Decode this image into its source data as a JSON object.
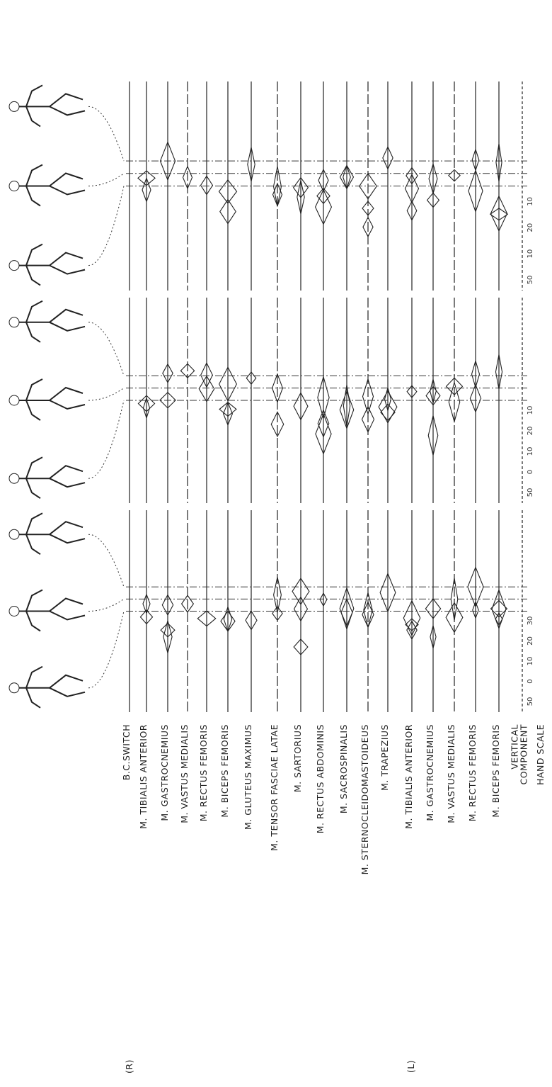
{
  "group_labels": {
    "right": "(R)",
    "left": "(L)"
  },
  "channels": [
    [
      "B.C.SWITCH"
    ],
    [
      "M. TIBIALIS ANTERIOR"
    ],
    [
      "M. GASTROCNEMIUS"
    ],
    [
      "M. VASTUS MEDIALIS"
    ],
    [
      "M. RECTUS FEMORIS"
    ],
    [
      "M. BICEPS FEMORIS"
    ],
    [
      "M. GLUTEUS MAXIMUS"
    ],
    [
      "M. TENSOR FASCIAE LATAE"
    ],
    [
      "M. SARTORIUS"
    ],
    [
      "M. RECTUS ABDOMINIS"
    ],
    [
      "M. SACROSPINALIS"
    ],
    [
      "M. STERNOCLEIDOMASTOIDEUS"
    ],
    [
      "M. TRAPEZIUS"
    ],
    [
      "M. TIBIALIS ANTERIOR"
    ],
    [
      "M. GASTROCNEMIUS"
    ],
    [
      "M. VASTUS MEDIALIS"
    ],
    [
      "M. RECTUS FEMORIS"
    ],
    [
      "M. BICEPS FEMORIS"
    ],
    [
      "VERTICAL",
      "COMPONENT"
    ],
    [
      "HAND SCALE"
    ]
  ],
  "panels": [
    {
      "scale_labels": [
        "50",
        "0",
        "10",
        "20",
        "30"
      ]
    },
    {
      "scale_labels": [
        "50",
        "0",
        "10",
        "20",
        "10"
      ]
    },
    {
      "scale_labels": [
        "50",
        "10",
        "20",
        "10"
      ]
    }
  ]
}
